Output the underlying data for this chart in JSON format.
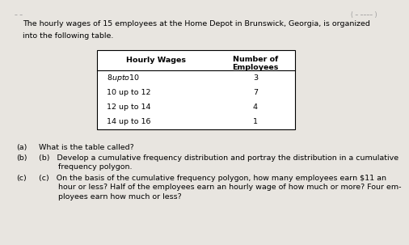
{
  "intro_text_line1": "The hourly wages of 15 employees at the Home Depot in Brunswick, Georgia, is organized",
  "intro_text_line2": "into the following table.",
  "top_label": "( – –––– )",
  "col1_header": "Hourly Wages",
  "col2_header_line1": "Number of",
  "col2_header_line2": "Employees",
  "rows": [
    [
      "$ 8 up to $10",
      "3"
    ],
    [
      "10 up to 12",
      "7"
    ],
    [
      "12 up to 14",
      "4"
    ],
    [
      "14 up to 16",
      "1"
    ]
  ],
  "q_a": "(a)   What is the table called?",
  "q_b_line1": "(b)   Develop a cumulative frequency distribution and portray the distribution in a cumulative",
  "q_b_line2": "        frequency polygon.",
  "q_c_line1": "(c)   On the basis of the cumulative frequency polygon, how many employees earn $11 an",
  "q_c_line2": "        hour or less? Half of the employees earn an hourly wage of how much or more? Four em-",
  "q_c_line3": "        ployees earn how much or less?",
  "bg_color": "#e8e5e0",
  "table_bg": "#ffffff",
  "font_size": 6.8,
  "font_size_header": 6.8
}
